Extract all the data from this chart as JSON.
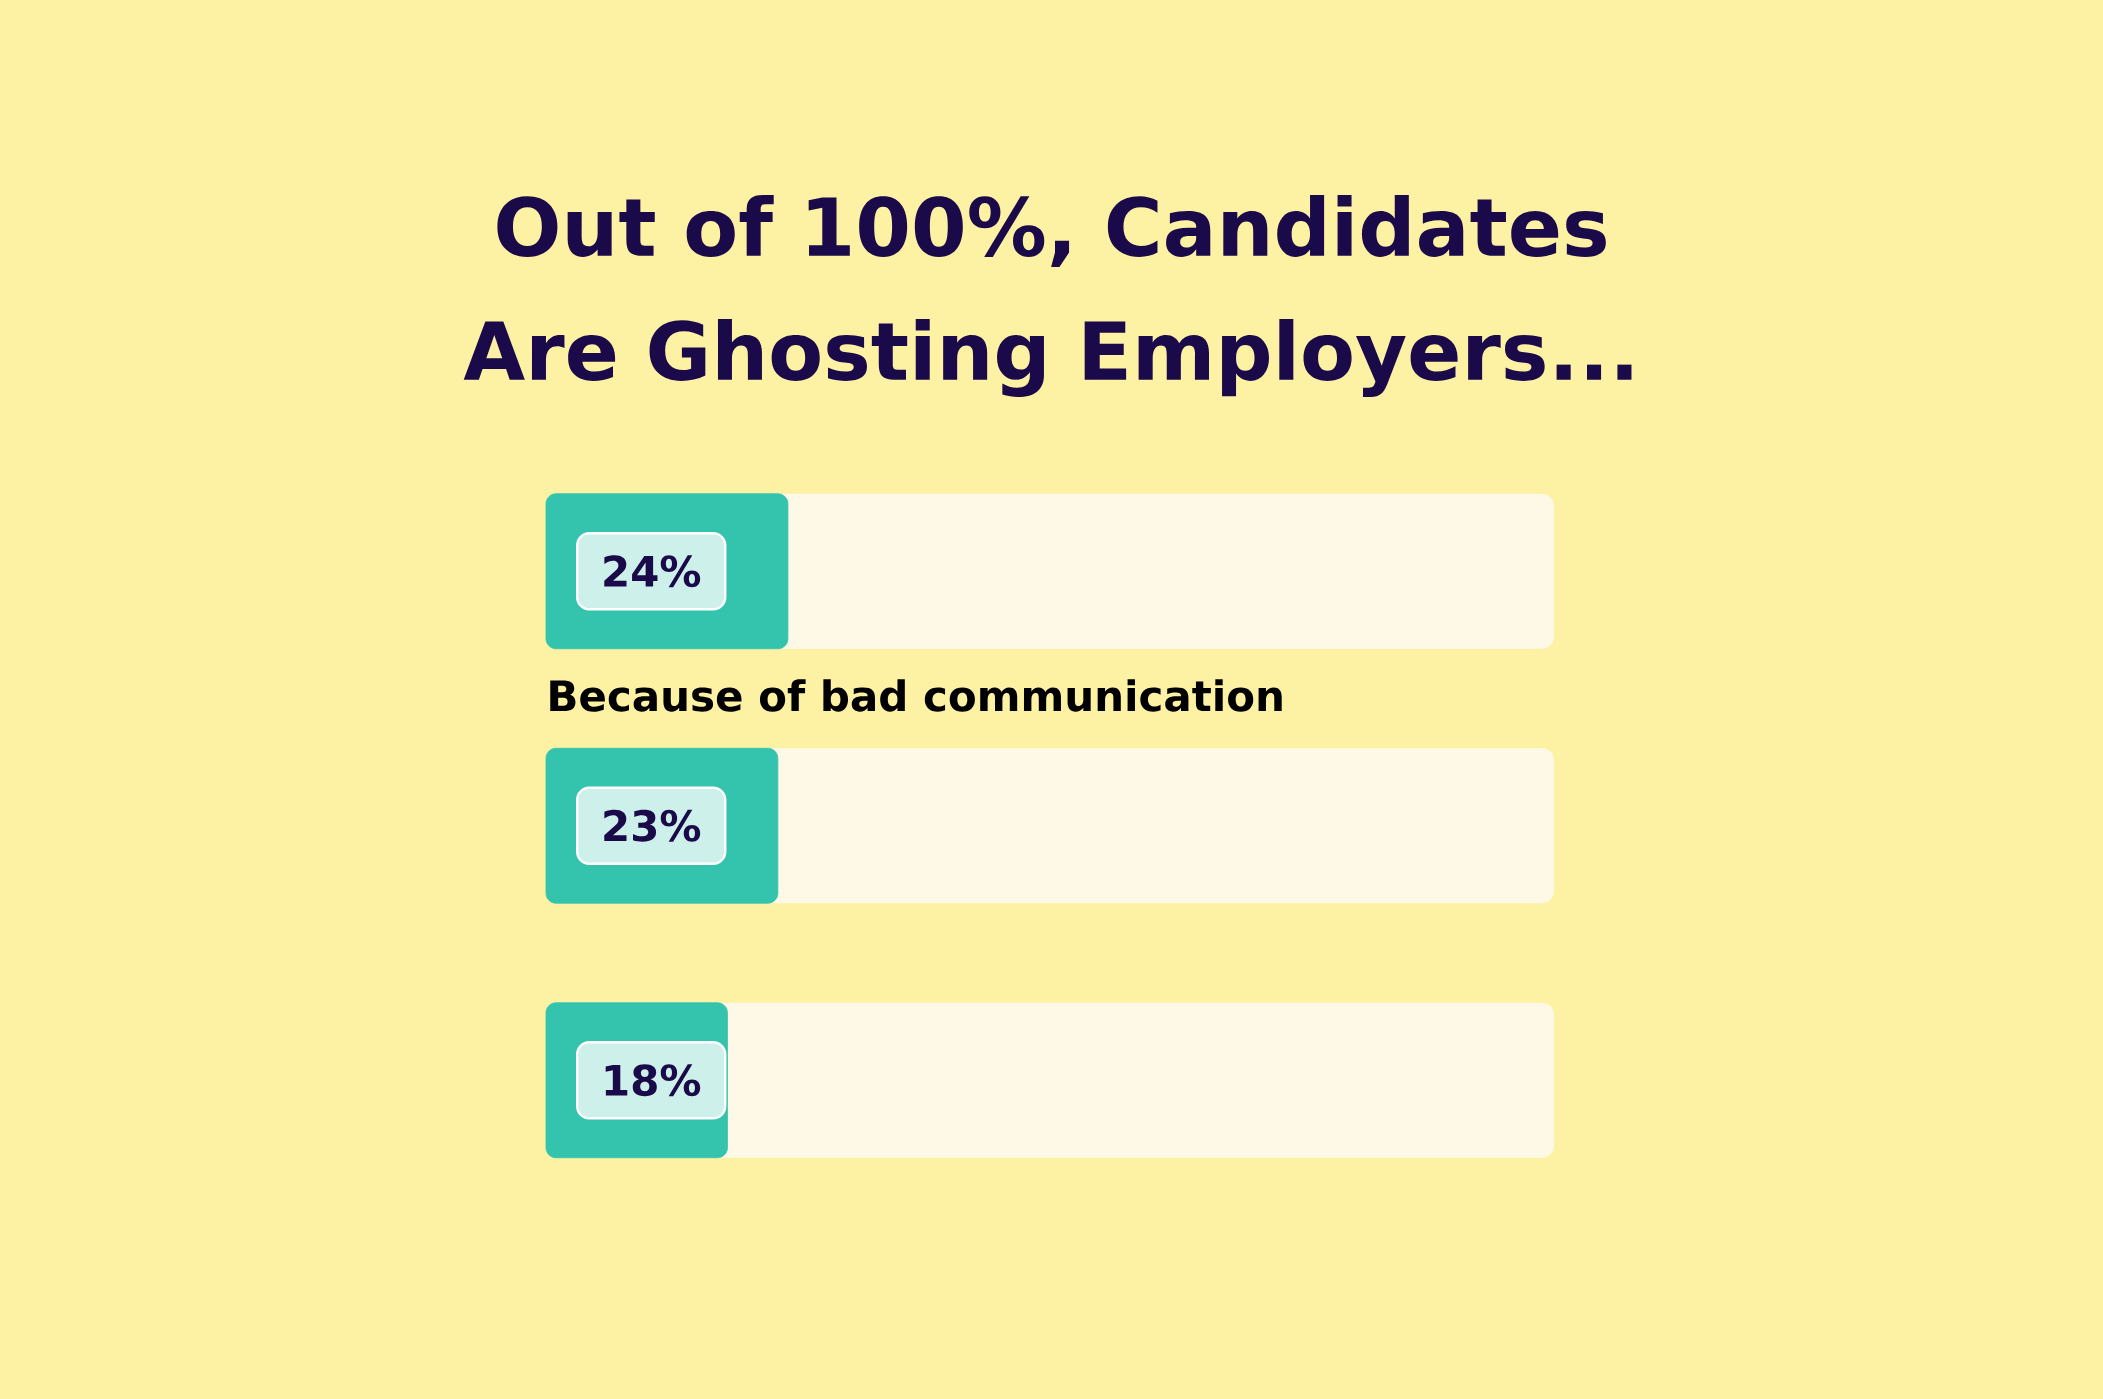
{
  "chart_data": {
    "type": "bar",
    "orientation": "horizontal",
    "title": "Out of 100%, Candidates Are Ghosting Employers...",
    "categories": [
      "Because of bad communication",
      null,
      null
    ],
    "values": [
      24,
      23,
      18
    ],
    "value_labels": [
      "24%",
      "23%",
      "18%"
    ],
    "color": "#34c4ad",
    "xlim": [
      0,
      100
    ],
    "tick_labels": false
  }
}
